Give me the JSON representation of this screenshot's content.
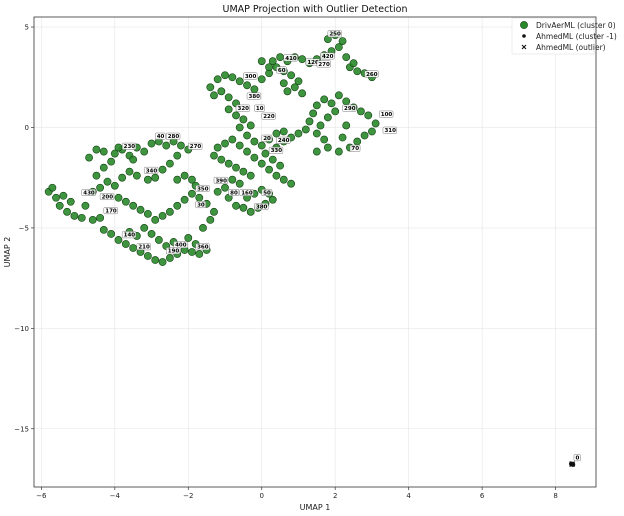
{
  "chart_data": {
    "type": "scatter",
    "title": "UMAP Projection with Outlier Detection",
    "xlabel": "UMAP 1",
    "ylabel": "UMAP 2",
    "xlim": [
      -6.2,
      9.1
    ],
    "ylim": [
      -17.9,
      5.5
    ],
    "xticks": [
      -6,
      -4,
      -2,
      0,
      2,
      4,
      6,
      8
    ],
    "yticks": [
      5,
      0,
      -5,
      -10,
      -15
    ],
    "grid": true,
    "legend_position": "top-right",
    "colors": {
      "cluster0": "#2a8a2a",
      "cluster0_edge": "#104010",
      "cluster_minus1": "#111111",
      "outlier": "#111111"
    },
    "series": [
      {
        "name": "DrivAerML (cluster 0)",
        "marker": "circle",
        "points": [
          [
            -5.8,
            -3.2
          ],
          [
            -5.6,
            -3.5
          ],
          [
            -5.7,
            -3.0
          ],
          [
            -5.5,
            -3.9
          ],
          [
            -5.3,
            -4.2
          ],
          [
            -5.1,
            -4.4
          ],
          [
            -4.9,
            -4.5
          ],
          [
            -4.6,
            -4.6
          ],
          [
            -4.4,
            -4.5
          ],
          [
            -5.4,
            -3.4
          ],
          [
            -5.2,
            -3.7
          ],
          [
            -4.8,
            -3.9
          ],
          [
            -4.6,
            -3.2
          ],
          [
            -4.4,
            -3.0
          ],
          [
            -4.2,
            -2.7
          ],
          [
            -4.5,
            -2.4
          ],
          [
            -4.3,
            -2.0
          ],
          [
            -4.1,
            -1.7
          ],
          [
            -4.7,
            -1.5
          ],
          [
            -4.5,
            -1.1
          ],
          [
            -4.3,
            -1.2
          ],
          [
            -4.0,
            -1.3
          ],
          [
            -3.8,
            -1.1
          ],
          [
            -3.6,
            -1.4
          ],
          [
            -3.5,
            -1.6
          ],
          [
            -3.9,
            -1.0
          ],
          [
            -3.4,
            -1.0
          ],
          [
            -3.2,
            -1.2
          ],
          [
            -3.0,
            -0.8
          ],
          [
            -2.8,
            -0.7
          ],
          [
            -2.6,
            -0.9
          ],
          [
            -2.4,
            -0.7
          ],
          [
            -2.2,
            -0.9
          ],
          [
            -2.0,
            -1.1
          ],
          [
            -2.3,
            -1.4
          ],
          [
            -2.5,
            -1.8
          ],
          [
            -2.7,
            -2.1
          ],
          [
            -2.9,
            -2.5
          ],
          [
            -3.1,
            -2.6
          ],
          [
            -3.4,
            -2.4
          ],
          [
            -3.6,
            -2.2
          ],
          [
            -3.8,
            -2.5
          ],
          [
            -4.0,
            -2.9
          ],
          [
            -3.9,
            -3.5
          ],
          [
            -3.7,
            -3.7
          ],
          [
            -3.5,
            -3.9
          ],
          [
            -3.3,
            -4.1
          ],
          [
            -3.1,
            -4.3
          ],
          [
            -2.9,
            -4.6
          ],
          [
            -2.7,
            -4.4
          ],
          [
            -2.5,
            -4.2
          ],
          [
            -2.3,
            -3.9
          ],
          [
            -2.1,
            -3.6
          ],
          [
            -1.9,
            -3.3
          ],
          [
            -1.8,
            -2.9
          ],
          [
            -1.9,
            -2.6
          ],
          [
            -2.1,
            -2.4
          ],
          [
            -2.3,
            -2.6
          ],
          [
            -4.3,
            -5.1
          ],
          [
            -4.1,
            -5.3
          ],
          [
            -3.9,
            -5.6
          ],
          [
            -3.7,
            -5.8
          ],
          [
            -3.5,
            -6.0
          ],
          [
            -3.3,
            -6.2
          ],
          [
            -3.1,
            -6.4
          ],
          [
            -2.9,
            -6.6
          ],
          [
            -2.7,
            -6.7
          ],
          [
            -2.5,
            -6.5
          ],
          [
            -2.3,
            -6.3
          ],
          [
            -2.1,
            -6.1
          ],
          [
            -1.9,
            -6.2
          ],
          [
            -1.7,
            -6.3
          ],
          [
            -1.5,
            -6.1
          ],
          [
            -1.8,
            -5.8
          ],
          [
            -2.0,
            -5.5
          ],
          [
            -3.6,
            -5.2
          ],
          [
            -3.4,
            -5.4
          ],
          [
            -3.2,
            -5.0
          ],
          [
            -3.0,
            -5.3
          ],
          [
            -2.8,
            -5.6
          ],
          [
            -2.6,
            -5.9
          ],
          [
            -2.4,
            -5.7
          ],
          [
            -1.6,
            -5.0
          ],
          [
            -1.4,
            -4.6
          ],
          [
            -1.3,
            -4.2
          ],
          [
            -1.5,
            -3.8
          ],
          [
            -1.7,
            -3.5
          ],
          [
            -1.2,
            -3.2
          ],
          [
            -1.0,
            -3.0
          ],
          [
            -0.8,
            -2.6
          ],
          [
            -0.6,
            -2.8
          ],
          [
            -0.9,
            -3.5
          ],
          [
            -0.7,
            -3.9
          ],
          [
            -0.5,
            -4.0
          ],
          [
            -0.3,
            -4.2
          ],
          [
            -0.1,
            -4.0
          ],
          [
            0.1,
            -3.8
          ],
          [
            0.3,
            -3.6
          ],
          [
            0.2,
            -3.3
          ],
          [
            0.0,
            -3.1
          ],
          [
            -0.2,
            -3.3
          ],
          [
            -0.4,
            -3.5
          ],
          [
            -0.3,
            -2.4
          ],
          [
            -0.5,
            -2.2
          ],
          [
            -0.7,
            -2.0
          ],
          [
            -0.9,
            -1.8
          ],
          [
            -1.1,
            -1.6
          ],
          [
            -1.3,
            -1.4
          ],
          [
            -1.2,
            -1.0
          ],
          [
            -1.0,
            -0.8
          ],
          [
            -0.8,
            -0.6
          ],
          [
            -0.6,
            -0.9
          ],
          [
            -0.4,
            -1.2
          ],
          [
            -0.2,
            -1.5
          ],
          [
            0.0,
            -1.8
          ],
          [
            0.2,
            -2.1
          ],
          [
            0.4,
            -2.4
          ],
          [
            0.6,
            -2.6
          ],
          [
            0.8,
            -2.8
          ],
          [
            0.5,
            -1.9
          ],
          [
            0.3,
            -1.6
          ],
          [
            0.1,
            -1.3
          ],
          [
            0.4,
            -1.0
          ],
          [
            0.6,
            -0.7
          ],
          [
            0.8,
            -0.5
          ],
          [
            1.0,
            -0.3
          ],
          [
            1.2,
            -0.1
          ],
          [
            1.3,
            0.3
          ],
          [
            1.4,
            0.7
          ],
          [
            1.5,
            1.1
          ],
          [
            1.7,
            1.4
          ],
          [
            1.9,
            1.2
          ],
          [
            2.0,
            0.8
          ],
          [
            1.8,
            0.5
          ],
          [
            1.6,
            0.1
          ],
          [
            1.5,
            -0.3
          ],
          [
            1.7,
            -0.6
          ],
          [
            1.5,
            -1.2
          ],
          [
            1.8,
            -1.0
          ],
          [
            2.1,
            -1.2
          ],
          [
            2.4,
            -1.0
          ],
          [
            2.6,
            -0.7
          ],
          [
            2.8,
            -0.4
          ],
          [
            3.0,
            -0.2
          ],
          [
            3.1,
            0.2
          ],
          [
            2.9,
            0.6
          ],
          [
            2.7,
            0.8
          ],
          [
            2.5,
            1.0
          ],
          [
            2.3,
            1.3
          ],
          [
            2.1,
            1.6
          ],
          [
            2.3,
            0.1
          ],
          [
            2.2,
            -0.5
          ],
          [
            -1.4,
            2.0
          ],
          [
            -1.2,
            2.4
          ],
          [
            -1.0,
            2.6
          ],
          [
            -0.8,
            2.5
          ],
          [
            -0.6,
            2.3
          ],
          [
            -0.4,
            2.1
          ],
          [
            -0.2,
            1.9
          ],
          [
            0.0,
            2.4
          ],
          [
            0.2,
            2.7
          ],
          [
            -1.3,
            1.6
          ],
          [
            -1.1,
            1.8
          ],
          [
            -0.9,
            1.5
          ],
          [
            -0.7,
            1.2
          ],
          [
            -0.9,
            0.9
          ],
          [
            -0.7,
            0.6
          ],
          [
            -0.5,
            0.4
          ],
          [
            -0.3,
            0.1
          ],
          [
            -0.6,
            0.0
          ],
          [
            -0.4,
            -0.4
          ],
          [
            -0.2,
            -0.7
          ],
          [
            0.0,
            -0.9
          ],
          [
            0.2,
            -0.6
          ],
          [
            0.4,
            -0.3
          ],
          [
            0.6,
            -0.2
          ],
          [
            0.3,
            3.3
          ],
          [
            0.5,
            3.5
          ],
          [
            0.7,
            3.3
          ],
          [
            0.9,
            3.5
          ],
          [
            1.1,
            3.4
          ],
          [
            1.3,
            3.2
          ],
          [
            1.5,
            3.4
          ],
          [
            1.7,
            3.6
          ],
          [
            1.9,
            3.8
          ],
          [
            2.1,
            4.0
          ],
          [
            2.2,
            4.3
          ],
          [
            2.0,
            4.6
          ],
          [
            1.8,
            4.4
          ],
          [
            2.3,
            3.5
          ],
          [
            2.4,
            3.0
          ],
          [
            2.6,
            2.8
          ],
          [
            2.8,
            2.7
          ],
          [
            3.0,
            2.5
          ],
          [
            2.5,
            3.2
          ],
          [
            0.4,
            3.0
          ],
          [
            0.6,
            2.8
          ],
          [
            0.8,
            2.6
          ],
          [
            1.0,
            2.3
          ],
          [
            0.9,
            2.0
          ],
          [
            0.7,
            1.8
          ],
          [
            1.1,
            1.7
          ],
          [
            0.6,
            2.2
          ],
          [
            0.2,
            3.0
          ],
          [
            0.0,
            3.3
          ]
        ]
      },
      {
        "name": "AhmedML (cluster -1)",
        "marker": "circle",
        "points": [
          [
            8.43,
            -16.75
          ],
          [
            8.47,
            -16.78
          ]
        ]
      },
      {
        "name": "AhmedML (outlier)",
        "marker": "x",
        "points": [
          [
            8.45,
            -16.76
          ]
        ]
      }
    ],
    "annotations": [
      {
        "label": "250",
        "x": 1.8,
        "y": 4.6
      },
      {
        "label": "410",
        "x": 0.6,
        "y": 3.4
      },
      {
        "label": "420",
        "x": 1.6,
        "y": 3.5
      },
      {
        "label": "120",
        "x": 1.2,
        "y": 3.2
      },
      {
        "label": "270",
        "x": 1.5,
        "y": 3.1
      },
      {
        "label": "60",
        "x": 0.4,
        "y": 2.8
      },
      {
        "label": "300",
        "x": -0.5,
        "y": 2.5
      },
      {
        "label": "260",
        "x": 2.8,
        "y": 2.6
      },
      {
        "label": "380",
        "x": -0.4,
        "y": 1.5
      },
      {
        "label": "320",
        "x": -0.7,
        "y": 0.9
      },
      {
        "label": "10",
        "x": -0.2,
        "y": 0.9
      },
      {
        "label": "220",
        "x": 0.0,
        "y": 0.5
      },
      {
        "label": "290",
        "x": 2.2,
        "y": 0.9
      },
      {
        "label": "100",
        "x": 3.2,
        "y": 0.6
      },
      {
        "label": "310",
        "x": 3.3,
        "y": -0.2
      },
      {
        "label": "70",
        "x": 2.4,
        "y": -1.1
      },
      {
        "label": "40",
        "x": -2.9,
        "y": -0.5
      },
      {
        "label": "280",
        "x": -2.6,
        "y": -0.5
      },
      {
        "label": "20",
        "x": 0.0,
        "y": -0.6
      },
      {
        "label": "240",
        "x": 0.4,
        "y": -0.7
      },
      {
        "label": "230",
        "x": -3.8,
        "y": -1.0
      },
      {
        "label": "270",
        "x": -2.0,
        "y": -1.0
      },
      {
        "label": "330",
        "x": 0.2,
        "y": -1.2
      },
      {
        "label": "340",
        "x": -3.2,
        "y": -2.2
      },
      {
        "label": "390",
        "x": -1.3,
        "y": -2.7
      },
      {
        "label": "350",
        "x": -1.8,
        "y": -3.1
      },
      {
        "label": "430",
        "x": -4.9,
        "y": -3.3
      },
      {
        "label": "200",
        "x": -4.4,
        "y": -3.5
      },
      {
        "label": "50",
        "x": 0.0,
        "y": -3.3
      },
      {
        "label": "80",
        "x": -0.9,
        "y": -3.3
      },
      {
        "label": "160",
        "x": -0.6,
        "y": -3.3
      },
      {
        "label": "380",
        "x": -0.2,
        "y": -4.0
      },
      {
        "label": "30",
        "x": -1.8,
        "y": -3.9
      },
      {
        "label": "170",
        "x": -4.3,
        "y": -4.2
      },
      {
        "label": "140",
        "x": -3.8,
        "y": -5.4
      },
      {
        "label": "400",
        "x": -2.4,
        "y": -5.9
      },
      {
        "label": "210",
        "x": -3.4,
        "y": -6.0
      },
      {
        "label": "190",
        "x": -2.6,
        "y": -6.2
      },
      {
        "label": "360",
        "x": -1.8,
        "y": -6.0
      },
      {
        "label": "0",
        "x": 8.5,
        "y": -16.5
      }
    ]
  }
}
